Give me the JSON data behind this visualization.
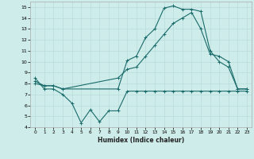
{
  "xlabel": "Humidex (Indice chaleur)",
  "bg_color": "#ceecea",
  "grid_color": "#b8dcd9",
  "line_color": "#1a6b6b",
  "xlim": [
    -0.5,
    23.5
  ],
  "ylim": [
    4,
    15.5
  ],
  "xticks": [
    0,
    1,
    2,
    3,
    4,
    5,
    6,
    7,
    8,
    9,
    10,
    11,
    12,
    13,
    14,
    15,
    16,
    17,
    18,
    19,
    20,
    21,
    22,
    23
  ],
  "yticks": [
    4,
    5,
    6,
    7,
    8,
    9,
    10,
    11,
    12,
    13,
    14,
    15
  ],
  "curve1_x": [
    0,
    1,
    2,
    3,
    4,
    5,
    6,
    7,
    8,
    9,
    10,
    11,
    12,
    13,
    14,
    15,
    16,
    17,
    18,
    19,
    20,
    21,
    22,
    23
  ],
  "curve1_y": [
    8.5,
    7.5,
    7.5,
    7.0,
    6.2,
    4.4,
    5.6,
    4.5,
    5.5,
    5.5,
    7.3,
    7.3,
    7.3,
    7.3,
    7.3,
    7.3,
    7.3,
    7.3,
    7.3,
    7.3,
    7.3,
    7.3,
    7.3,
    7.3
  ],
  "curve2_x": [
    0,
    1,
    2,
    3,
    9,
    10,
    11,
    12,
    13,
    14,
    15,
    16,
    17,
    18,
    19,
    20,
    21,
    22,
    23
  ],
  "curve2_y": [
    8.2,
    7.8,
    7.8,
    7.5,
    7.5,
    10.1,
    10.5,
    12.2,
    13.0,
    14.9,
    15.1,
    14.8,
    14.8,
    14.6,
    11.0,
    10.0,
    9.5,
    7.5,
    7.5
  ],
  "curve3_x": [
    0,
    1,
    2,
    3,
    9,
    10,
    11,
    12,
    13,
    14,
    15,
    16,
    17,
    18,
    19,
    20,
    21,
    22,
    23
  ],
  "curve3_y": [
    8.0,
    7.8,
    7.8,
    7.5,
    8.5,
    9.3,
    9.5,
    10.5,
    11.5,
    12.5,
    13.5,
    14.0,
    14.5,
    13.0,
    10.7,
    10.5,
    10.0,
    7.5,
    7.5
  ]
}
